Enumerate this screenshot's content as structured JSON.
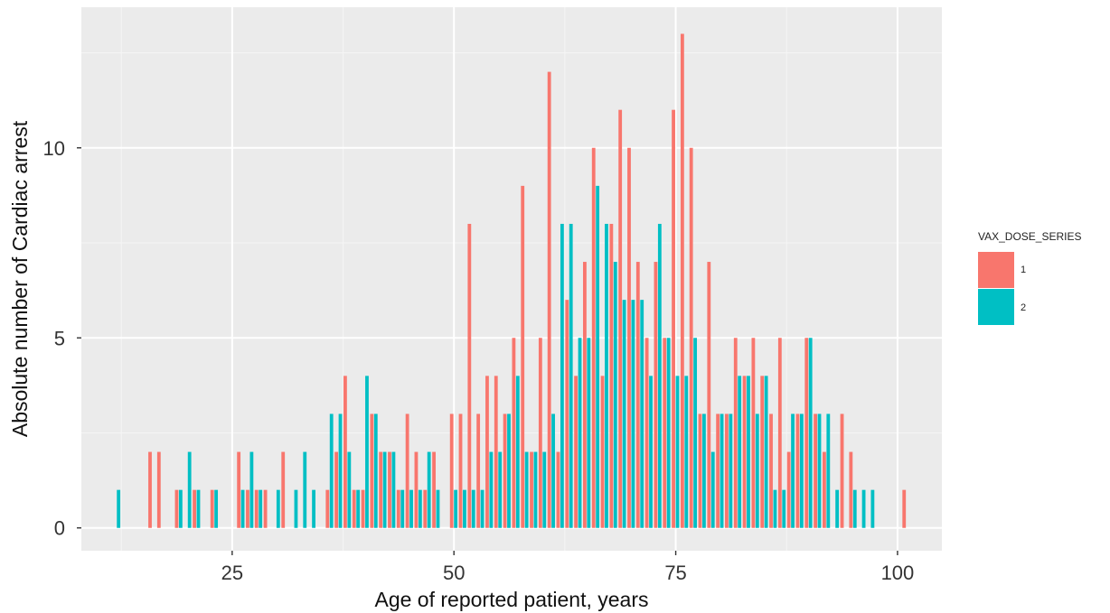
{
  "chart_data": {
    "type": "bar",
    "xlabel": "Age of reported patient, years",
    "ylabel": "Absolute number of Cardiac arrest",
    "xlim": [
      8,
      105
    ],
    "ylim": [
      -0.6,
      13.7
    ],
    "x_ticks": [
      25,
      50,
      75,
      100
    ],
    "y_ticks": [
      0,
      5,
      10
    ],
    "x_tick_labels": [
      "25",
      "50",
      "75",
      "100"
    ],
    "y_tick_labels": [
      "0",
      "5",
      "10"
    ],
    "grid": true,
    "legend": {
      "title": "VAX_DOSE_SERIES",
      "placement": "right"
    },
    "series": [
      {
        "name": "1",
        "color": "#F8766D",
        "points": [
          [
            16,
            2
          ],
          [
            17,
            2
          ],
          [
            19,
            1
          ],
          [
            21,
            1
          ],
          [
            23,
            1
          ],
          [
            26,
            2
          ],
          [
            27,
            1
          ],
          [
            28,
            1
          ],
          [
            29,
            1
          ],
          [
            31,
            2
          ],
          [
            36,
            1
          ],
          [
            37,
            2
          ],
          [
            38,
            4
          ],
          [
            39,
            1
          ],
          [
            40,
            1
          ],
          [
            41,
            3
          ],
          [
            42,
            2
          ],
          [
            43,
            2
          ],
          [
            44,
            1
          ],
          [
            45,
            3
          ],
          [
            46,
            2
          ],
          [
            47,
            1
          ],
          [
            48,
            2
          ],
          [
            50,
            3
          ],
          [
            51,
            3
          ],
          [
            52,
            8
          ],
          [
            53,
            3
          ],
          [
            54,
            4
          ],
          [
            55,
            4
          ],
          [
            56,
            3
          ],
          [
            57,
            5
          ],
          [
            58,
            9
          ],
          [
            59,
            2
          ],
          [
            60,
            5
          ],
          [
            61,
            12
          ],
          [
            62,
            2
          ],
          [
            63,
            6
          ],
          [
            64,
            4
          ],
          [
            65,
            7
          ],
          [
            66,
            10
          ],
          [
            67,
            4
          ],
          [
            68,
            8
          ],
          [
            69,
            11
          ],
          [
            70,
            10
          ],
          [
            71,
            7
          ],
          [
            72,
            5
          ],
          [
            73,
            7
          ],
          [
            74,
            5
          ],
          [
            75,
            11
          ],
          [
            76,
            13
          ],
          [
            77,
            10
          ],
          [
            78,
            3
          ],
          [
            79,
            7
          ],
          [
            80,
            3
          ],
          [
            81,
            3
          ],
          [
            82,
            5
          ],
          [
            83,
            4
          ],
          [
            84,
            5
          ],
          [
            85,
            4
          ],
          [
            86,
            3
          ],
          [
            87,
            5
          ],
          [
            88,
            2
          ],
          [
            89,
            3
          ],
          [
            90,
            5
          ],
          [
            91,
            3
          ],
          [
            92,
            2
          ],
          [
            94,
            3
          ],
          [
            95,
            2
          ],
          [
            101,
            1
          ]
        ]
      },
      {
        "name": "2",
        "color": "#00BFC4",
        "points": [
          [
            12,
            1
          ],
          [
            19,
            1
          ],
          [
            20,
            2
          ],
          [
            21,
            1
          ],
          [
            23,
            1
          ],
          [
            26,
            1
          ],
          [
            27,
            2
          ],
          [
            28,
            1
          ],
          [
            30,
            1
          ],
          [
            32,
            1
          ],
          [
            33,
            2
          ],
          [
            34,
            1
          ],
          [
            36,
            3
          ],
          [
            37,
            3
          ],
          [
            38,
            2
          ],
          [
            39,
            1
          ],
          [
            40,
            4
          ],
          [
            41,
            3
          ],
          [
            42,
            2
          ],
          [
            43,
            2
          ],
          [
            44,
            1
          ],
          [
            45,
            1
          ],
          [
            46,
            1
          ],
          [
            47,
            2
          ],
          [
            48,
            1
          ],
          [
            50,
            1
          ],
          [
            51,
            1
          ],
          [
            52,
            1
          ],
          [
            53,
            1
          ],
          [
            54,
            2
          ],
          [
            55,
            2
          ],
          [
            56,
            3
          ],
          [
            57,
            4
          ],
          [
            58,
            2
          ],
          [
            59,
            2
          ],
          [
            60,
            2
          ],
          [
            61,
            3
          ],
          [
            62,
            8
          ],
          [
            63,
            8
          ],
          [
            64,
            5
          ],
          [
            65,
            5
          ],
          [
            66,
            9
          ],
          [
            67,
            8
          ],
          [
            68,
            7
          ],
          [
            69,
            6
          ],
          [
            70,
            6
          ],
          [
            71,
            6
          ],
          [
            72,
            4
          ],
          [
            73,
            8
          ],
          [
            74,
            5
          ],
          [
            75,
            4
          ],
          [
            76,
            4
          ],
          [
            77,
            5
          ],
          [
            78,
            3
          ],
          [
            79,
            2
          ],
          [
            80,
            3
          ],
          [
            81,
            3
          ],
          [
            82,
            4
          ],
          [
            83,
            4
          ],
          [
            84,
            3
          ],
          [
            85,
            4
          ],
          [
            86,
            1
          ],
          [
            87,
            1
          ],
          [
            88,
            3
          ],
          [
            89,
            3
          ],
          [
            90,
            5
          ],
          [
            91,
            3
          ],
          [
            92,
            3
          ],
          [
            93,
            1
          ],
          [
            95,
            1
          ],
          [
            96,
            1
          ],
          [
            97,
            1
          ]
        ]
      }
    ]
  }
}
